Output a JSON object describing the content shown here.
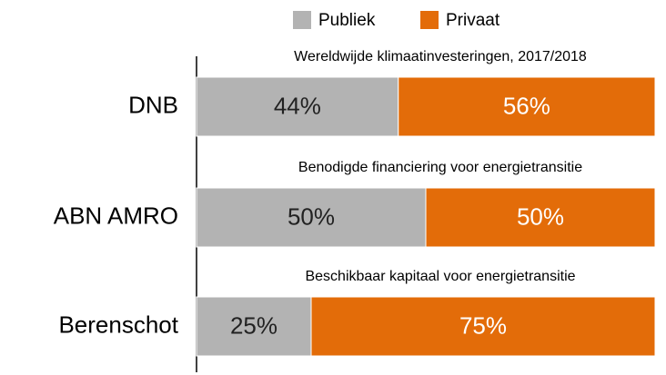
{
  "chart_data": {
    "type": "stacked-bar-horizontal",
    "categories": [
      "DNB",
      "ABN AMRO",
      "Berenschot"
    ],
    "annotations": [
      "Wereldwijde klimaatinvesteringen, 2017/2018",
      "Benodigde financiering voor energietransitie",
      "Beschikbaar kapitaal voor energietransitie"
    ],
    "series": [
      {
        "name": "Publiek",
        "color": "#b3b3b3",
        "values": [
          44,
          50,
          25
        ],
        "value_labels": [
          "44%",
          "50%",
          "25%"
        ]
      },
      {
        "name": "Privaat",
        "color": "#e36c09",
        "values": [
          56,
          50,
          75
        ],
        "value_labels": [
          "56%",
          "50%",
          "75%"
        ]
      }
    ],
    "xlim": [
      0,
      100
    ]
  }
}
